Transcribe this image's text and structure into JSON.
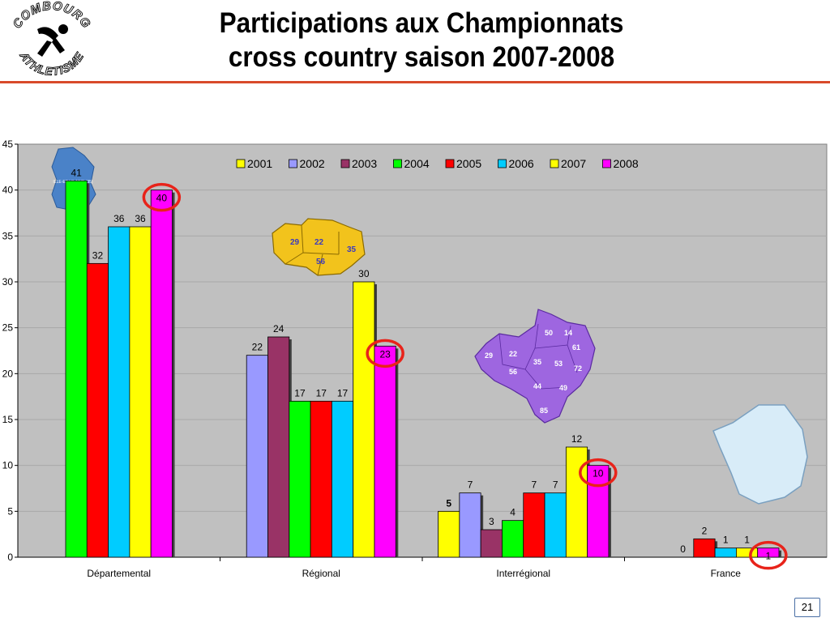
{
  "slide": {
    "title_line1": "Participations aux Championnats",
    "title_line2": "cross country saison 2007-2008",
    "page_number": "21",
    "logo_text_top": "COMBOURG",
    "logo_text_bottom": "ATHLETISME"
  },
  "maps": {
    "departemental_label": "ILLE-ET-VILAINE (35)",
    "regional_labels": [
      "29",
      "22",
      "35",
      "56"
    ],
    "interregional_labels": [
      "50",
      "14",
      "61",
      "29",
      "22",
      "35",
      "53",
      "72",
      "56",
      "44",
      "49",
      "85"
    ]
  },
  "colors": {
    "2001": "#ffff00",
    "2002": "#9999ff",
    "2003": "#993366",
    "2004": "#00ff00",
    "2005": "#ff0000",
    "2006": "#00ccff",
    "2007": "#ffff00",
    "2008": "#ff00ff",
    "highlight_circle": "#e8231a",
    "plot_background": "#c0c0c0"
  },
  "chart_data": {
    "type": "bar",
    "categories": [
      "Départemental",
      "Régional",
      "Interrégional",
      "France"
    ],
    "ylim": [
      0,
      45
    ],
    "yticks": [
      "0",
      "5",
      "10",
      "15",
      "20",
      "25",
      "30",
      "35",
      "40",
      "45"
    ],
    "legend_position": "top-right",
    "grid": true,
    "series": [
      {
        "name": "2001",
        "values": [
          null,
          null,
          5,
          null
        ]
      },
      {
        "name": "2002",
        "values": [
          null,
          22,
          7,
          null
        ]
      },
      {
        "name": "2003",
        "values": [
          null,
          24,
          3,
          null
        ]
      },
      {
        "name": "2004",
        "values": [
          41,
          17,
          4,
          0
        ]
      },
      {
        "name": "2005",
        "values": [
          32,
          17,
          7,
          2
        ]
      },
      {
        "name": "2006",
        "values": [
          36,
          17,
          7,
          1
        ]
      },
      {
        "name": "2007",
        "values": [
          36,
          30,
          12,
          1
        ]
      },
      {
        "name": "2008",
        "values": [
          40,
          23,
          10,
          1
        ]
      }
    ],
    "highlighted_series": "2008"
  }
}
